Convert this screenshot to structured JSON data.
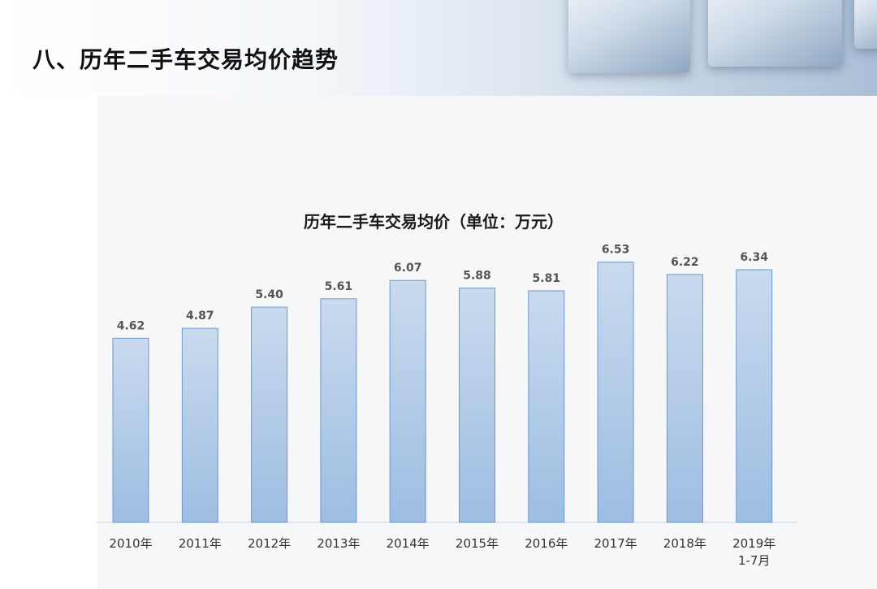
{
  "page": {
    "title": "八、历年二手车交易均价趋势"
  },
  "chart_data": {
    "type": "bar",
    "title": "历年二手车交易均价（单位：万元）",
    "xlabel": "",
    "ylabel": "",
    "categories": [
      "2010年",
      "2011年",
      "2012年",
      "2013年",
      "2014年",
      "2015年",
      "2016年",
      "2017年",
      "2018年",
      "2019年\n1-7月"
    ],
    "values": [
      4.62,
      4.87,
      5.4,
      5.61,
      6.07,
      5.88,
      5.81,
      6.53,
      6.22,
      6.34
    ],
    "value_labels": [
      "4.62",
      "4.87",
      "5.40",
      "5.61",
      "6.07",
      "5.88",
      "5.81",
      "6.53",
      "6.22",
      "6.34"
    ],
    "grid": false,
    "legend": "none",
    "colors": {
      "bar_top": "#c9daee",
      "bar_bottom": "#9dbde2",
      "bar_edge": "#6f98c8"
    }
  }
}
